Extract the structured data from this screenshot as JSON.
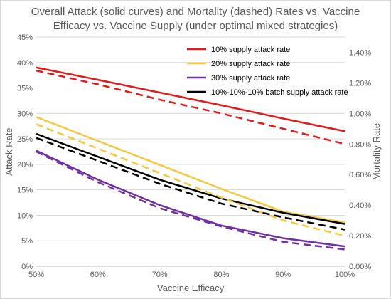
{
  "chart_data": {
    "type": "line",
    "title_lines": [
      "Overall Attack (solid curves) and Mortality (dashed) Rates vs. Vaccine",
      "Efficacy vs. Vaccine Supply (under optimal mixed strategies)"
    ],
    "xlabel": "Vaccine Efficacy",
    "ylabel": "Attack Rate",
    "y2label": "Mortality Rate",
    "x": [
      50,
      60,
      70,
      80,
      90,
      100
    ],
    "x_tick_labels": [
      "50%",
      "60%",
      "70%",
      "80%",
      "90%",
      "100%"
    ],
    "ylim": [
      0,
      45
    ],
    "y_ticks": [
      0,
      5,
      10,
      15,
      20,
      25,
      30,
      35,
      40,
      45
    ],
    "y_tick_labels": [
      "0%",
      "5%",
      "10%",
      "15%",
      "20%",
      "25%",
      "30%",
      "35%",
      "40%",
      "45%"
    ],
    "y2lim": [
      0,
      1.5
    ],
    "y2_ticks": [
      0,
      0.2,
      0.4,
      0.6,
      0.8,
      1.0,
      1.2,
      1.4
    ],
    "y2_tick_labels": [
      "0.00%",
      "0.20%",
      "0.40%",
      "0.60%",
      "0.80%",
      "1.00%",
      "1.20%",
      "1.40%"
    ],
    "grid": true,
    "legend_position": "top-right",
    "series": [
      {
        "name": "10% supply attack rate",
        "color": "#e31a1c",
        "axis": "left",
        "style": "solid",
        "values": [
          39.0,
          36.6,
          34.1,
          31.6,
          29.0,
          26.5
        ],
        "in_legend": true
      },
      {
        "name": "20% supply attack rate",
        "color": "#f5c842",
        "axis": "left",
        "style": "solid",
        "values": [
          29.3,
          24.6,
          19.9,
          15.2,
          10.7,
          8.6
        ],
        "in_legend": true
      },
      {
        "name": "30% supply attack rate",
        "color": "#7030a0",
        "axis": "left",
        "style": "solid",
        "values": [
          22.7,
          17.0,
          12.0,
          8.0,
          5.5,
          3.9
        ],
        "in_legend": true
      },
      {
        "name": "10%-10%-10% batch supply attack rate",
        "color": "#000000",
        "axis": "left",
        "style": "solid",
        "values": [
          26.0,
          21.5,
          17.0,
          13.3,
          10.5,
          8.3
        ],
        "in_legend": true
      },
      {
        "color": "#e31a1c",
        "axis": "right",
        "style": "dashed",
        "values": [
          1.28,
          1.19,
          1.09,
          1.0,
          0.9,
          0.8
        ],
        "in_legend": false
      },
      {
        "color": "#f5c842",
        "axis": "right",
        "style": "dashed",
        "values": [
          0.93,
          0.77,
          0.61,
          0.45,
          0.3,
          0.2
        ],
        "in_legend": false
      },
      {
        "color": "#7030a0",
        "axis": "right",
        "style": "dashed",
        "values": [
          0.75,
          0.55,
          0.38,
          0.26,
          0.16,
          0.11
        ],
        "in_legend": false
      },
      {
        "color": "#000000",
        "axis": "right",
        "style": "dashed",
        "values": [
          0.84,
          0.69,
          0.54,
          0.41,
          0.32,
          0.24
        ],
        "in_legend": false
      }
    ]
  }
}
